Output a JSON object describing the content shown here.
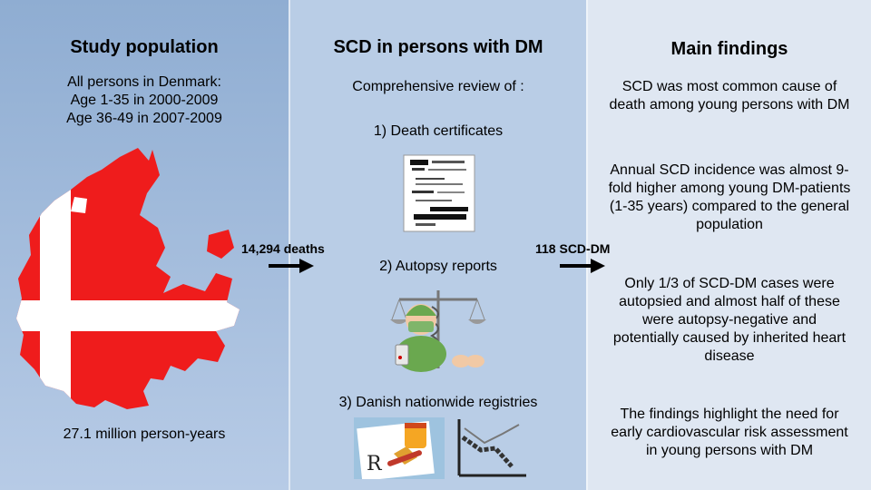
{
  "panels": {
    "study_population": {
      "title": "Study population",
      "lines": [
        "All persons in Denmark:",
        "Age 1-35 in 2000-2009",
        "Age 36-49 in 2007-2009"
      ],
      "person_years": "27.1 million person-years"
    },
    "scd_dm": {
      "title": "SCD in persons with DM",
      "intro": "Comprehensive review of :",
      "steps": [
        "1) Death certificates",
        "2) Autopsy reports",
        "3) Danish nationwide registries"
      ]
    },
    "main_findings": {
      "title": "Main findings",
      "findings": [
        [
          "SCD was most common cause of",
          "death among young persons with DM"
        ],
        [
          "Annual SCD incidence was almost 9-",
          "fold higher among young DM-patients",
          "(1-35 years) compared to the general",
          "population"
        ],
        [
          "Only 1/3 of SCD-DM cases were",
          "autopsied and almost half of these",
          "were autopsy-negative and",
          "potentially caused by inherited heart",
          "disease"
        ],
        [
          "The findings highlight the need for",
          "early cardiovascular risk assessment",
          "in young persons with DM"
        ]
      ]
    }
  },
  "arrows": {
    "deaths": "14,294 deaths",
    "scd_dm": "118 SCD-DM"
  },
  "icons": [
    "denmark-flag-map-icon",
    "death-certificate-icon",
    "autopsy-icon",
    "prescription-icon",
    "line-chart-icon"
  ],
  "colors": {
    "panel1": "#8fadd2",
    "panel2": "#b9cde6",
    "panel3": "#dfe7f2",
    "flag_red": "#ef1c1c"
  }
}
